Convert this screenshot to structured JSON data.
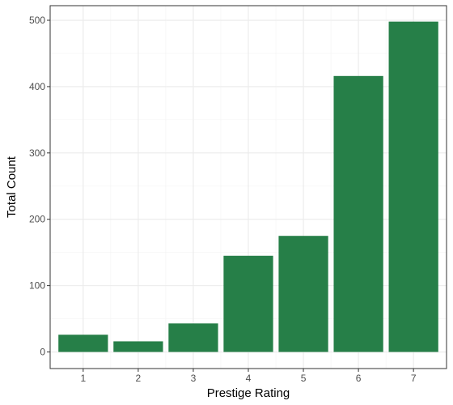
{
  "chart_data": {
    "type": "bar",
    "title": "",
    "xlabel": "Prestige Rating",
    "ylabel": "Total Count",
    "categories": [
      "1",
      "2",
      "3",
      "4",
      "5",
      "6",
      "7"
    ],
    "values": [
      26,
      16,
      43,
      145,
      175,
      416,
      498
    ],
    "ylim": [
      -25,
      522
    ],
    "yticks": [
      0,
      100,
      200,
      300,
      400,
      500
    ],
    "grid": true,
    "legend": "none",
    "bar_color": "#267F48",
    "grid_major_color": "#EBEBEB",
    "grid_minor_color": "#F3F3F3",
    "panel_border_color": "#333333"
  }
}
